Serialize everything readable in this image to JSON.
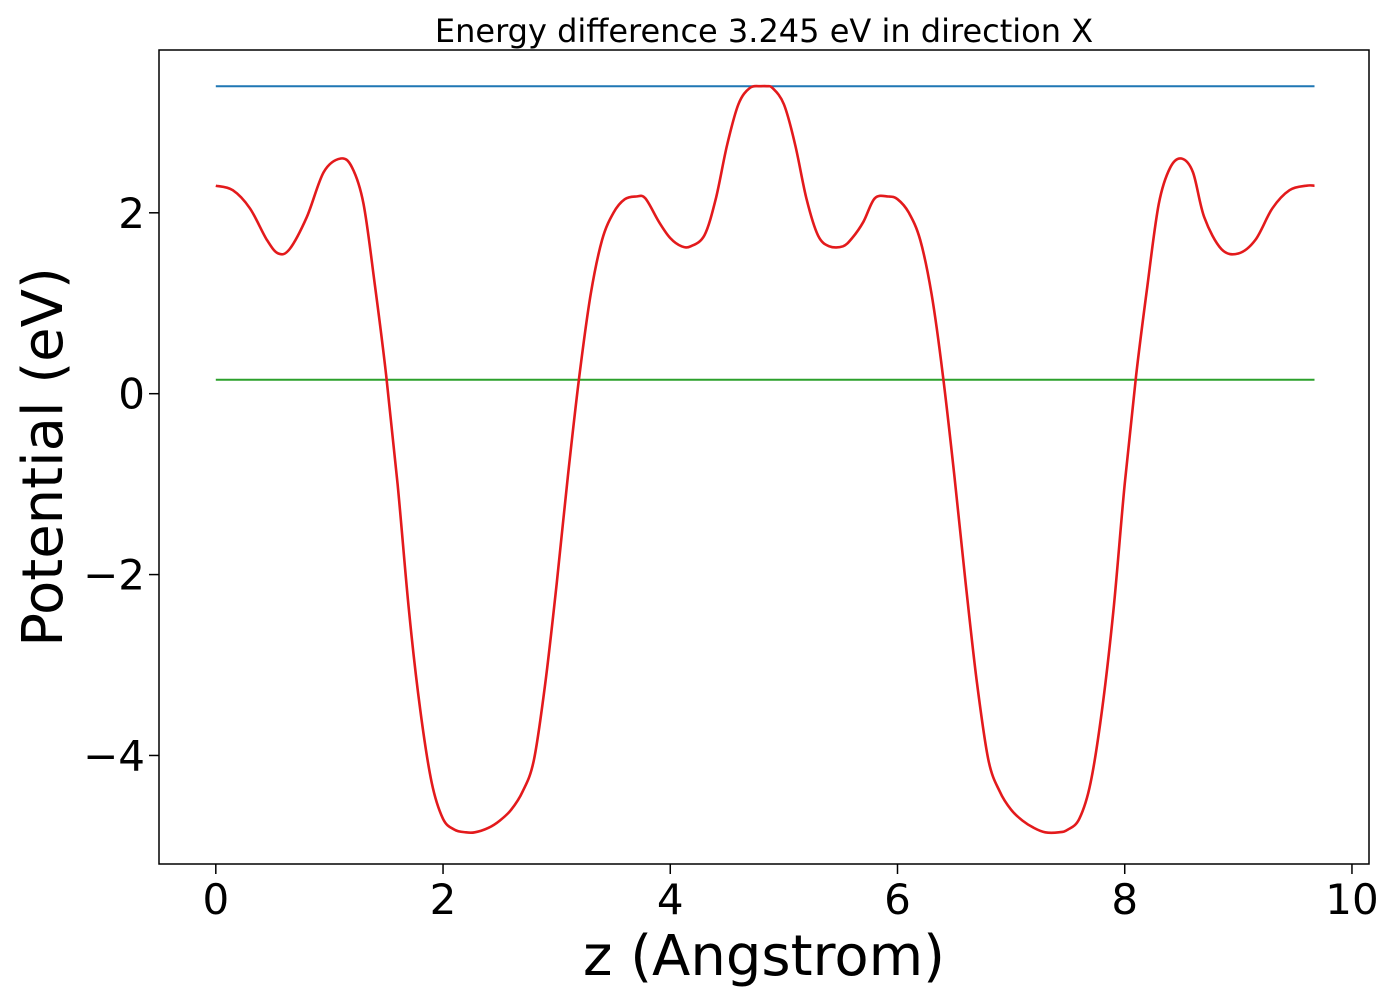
{
  "chart_data": {
    "type": "line",
    "title": "Energy difference 3.245 eV in direction X",
    "xlabel": "z (Angstrom)",
    "ylabel": "Potential (eV)",
    "xlim": [
      -0.5,
      10.15
    ],
    "ylim": [
      -5.2,
      3.8
    ],
    "xticks": [
      0,
      2,
      4,
      6,
      8,
      10
    ],
    "xtick_labels": [
      "0",
      "2",
      "4",
      "6",
      "8",
      "10"
    ],
    "yticks": [
      -4,
      -2,
      0,
      2
    ],
    "ytick_labels": [
      "−4",
      "−2",
      "0",
      "2"
    ],
    "grid": false,
    "legend": "none",
    "series": [
      {
        "color": "#1f77b4",
        "x": [
          0,
          9.67
        ],
        "y": [
          3.4,
          3.4
        ]
      },
      {
        "color": "#2ca02c",
        "x": [
          0,
          9.67
        ],
        "y": [
          0.155,
          0.155
        ]
      },
      {
        "color": "#e31a1c",
        "x": [
          0,
          0.15,
          0.3,
          0.45,
          0.55,
          0.65,
          0.8,
          0.95,
          1.1,
          1.2,
          1.3,
          1.4,
          1.5,
          1.6,
          1.7,
          1.8,
          1.9,
          2.0,
          2.1,
          2.2,
          2.28,
          2.4,
          2.5,
          2.6,
          2.7,
          2.8,
          2.9,
          3.0,
          3.1,
          3.2,
          3.3,
          3.4,
          3.5,
          3.6,
          3.7,
          3.78,
          3.9,
          4.0,
          4.1,
          4.18,
          4.3,
          4.4,
          4.5,
          4.6,
          4.7,
          4.8,
          4.85,
          4.9,
          5.0,
          5.1,
          5.2,
          5.3,
          5.4,
          5.52,
          5.6,
          5.7,
          5.8,
          5.92,
          6.0,
          6.1,
          6.2,
          6.3,
          6.4,
          6.5,
          6.6,
          6.7,
          6.8,
          6.9,
          7.0,
          7.1,
          7.2,
          7.3,
          7.42,
          7.5,
          7.6,
          7.7,
          7.8,
          7.9,
          8.0,
          8.1,
          8.2,
          8.3,
          8.4,
          8.5,
          8.6,
          8.7,
          8.85,
          9.0,
          9.15,
          9.3,
          9.45,
          9.6,
          9.67
        ],
        "y": [
          2.3,
          2.25,
          2.05,
          1.7,
          1.55,
          1.6,
          1.95,
          2.45,
          2.6,
          2.5,
          2.1,
          1.2,
          0.2,
          -1.0,
          -2.4,
          -3.5,
          -4.3,
          -4.7,
          -4.82,
          -4.85,
          -4.85,
          -4.8,
          -4.72,
          -4.6,
          -4.4,
          -4.05,
          -3.2,
          -2.1,
          -0.9,
          0.2,
          1.1,
          1.7,
          2.0,
          2.15,
          2.18,
          2.16,
          1.9,
          1.72,
          1.63,
          1.63,
          1.75,
          2.15,
          2.75,
          3.2,
          3.38,
          3.4,
          3.4,
          3.38,
          3.2,
          2.75,
          2.15,
          1.75,
          1.63,
          1.63,
          1.72,
          1.9,
          2.16,
          2.18,
          2.15,
          2.0,
          1.7,
          1.1,
          0.2,
          -0.9,
          -2.1,
          -3.2,
          -4.05,
          -4.4,
          -4.6,
          -4.72,
          -4.8,
          -4.85,
          -4.85,
          -4.82,
          -4.7,
          -4.3,
          -3.5,
          -2.4,
          -1.0,
          0.2,
          1.2,
          2.1,
          2.5,
          2.6,
          2.45,
          1.95,
          1.6,
          1.55,
          1.7,
          2.05,
          2.25,
          2.3,
          2.3
        ]
      }
    ]
  }
}
